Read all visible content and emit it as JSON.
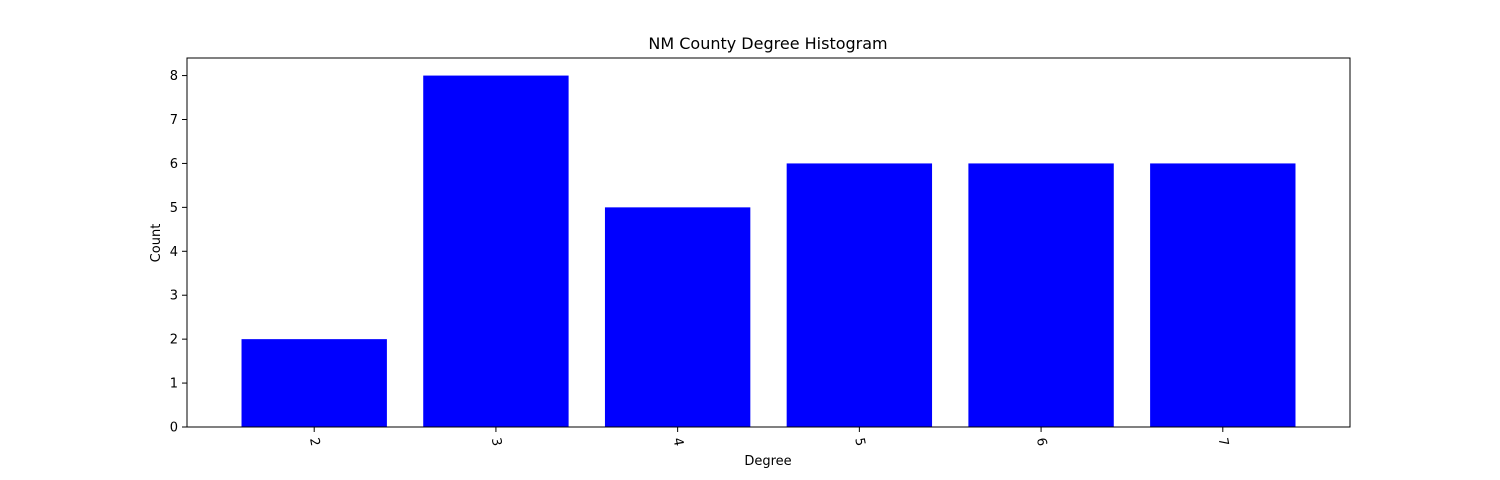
{
  "chart_data": {
    "type": "bar",
    "title": "NM County Degree Histogram",
    "xlabel": "Degree",
    "ylabel": "Count",
    "categories": [
      "2",
      "3",
      "4",
      "5",
      "6",
      "7"
    ],
    "values": [
      2,
      8,
      5,
      6,
      6,
      6
    ],
    "ylim": [
      0,
      8.4
    ],
    "yticks": [
      "0",
      "1",
      "2",
      "3",
      "4",
      "5",
      "6",
      "7",
      "8"
    ],
    "bar_color": "#0000ff",
    "grid": false,
    "legend": "none",
    "xtick_rotation": "rotated ~ -80°"
  }
}
